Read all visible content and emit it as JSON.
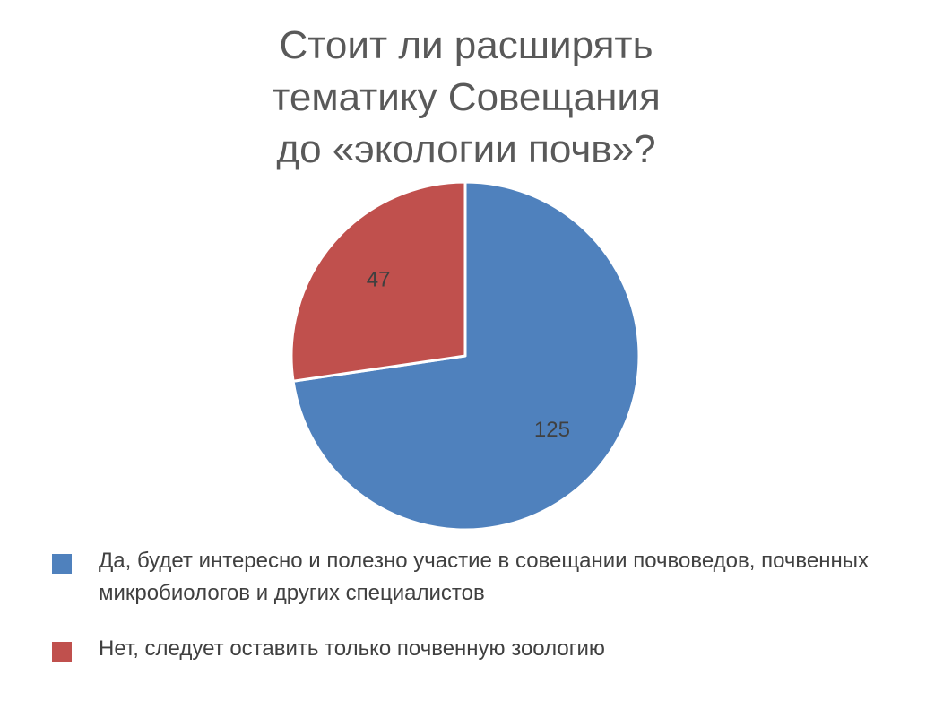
{
  "chart_data": {
    "type": "pie",
    "title_lines": [
      "Стоит ли расширять",
      "тематику Совещания",
      "до «экологии почв»?"
    ],
    "slices": [
      {
        "label": "Да, будет интересно и полезно участие в совещании почвоведов, почвенных микробиологов и других специалистов",
        "value": 125,
        "color": "#4F81BD"
      },
      {
        "label": "Нет, следует оставить только почвенную зоологию",
        "value": 47,
        "color": "#C0504D"
      }
    ],
    "legend_position": "bottom",
    "data_labels": true
  }
}
